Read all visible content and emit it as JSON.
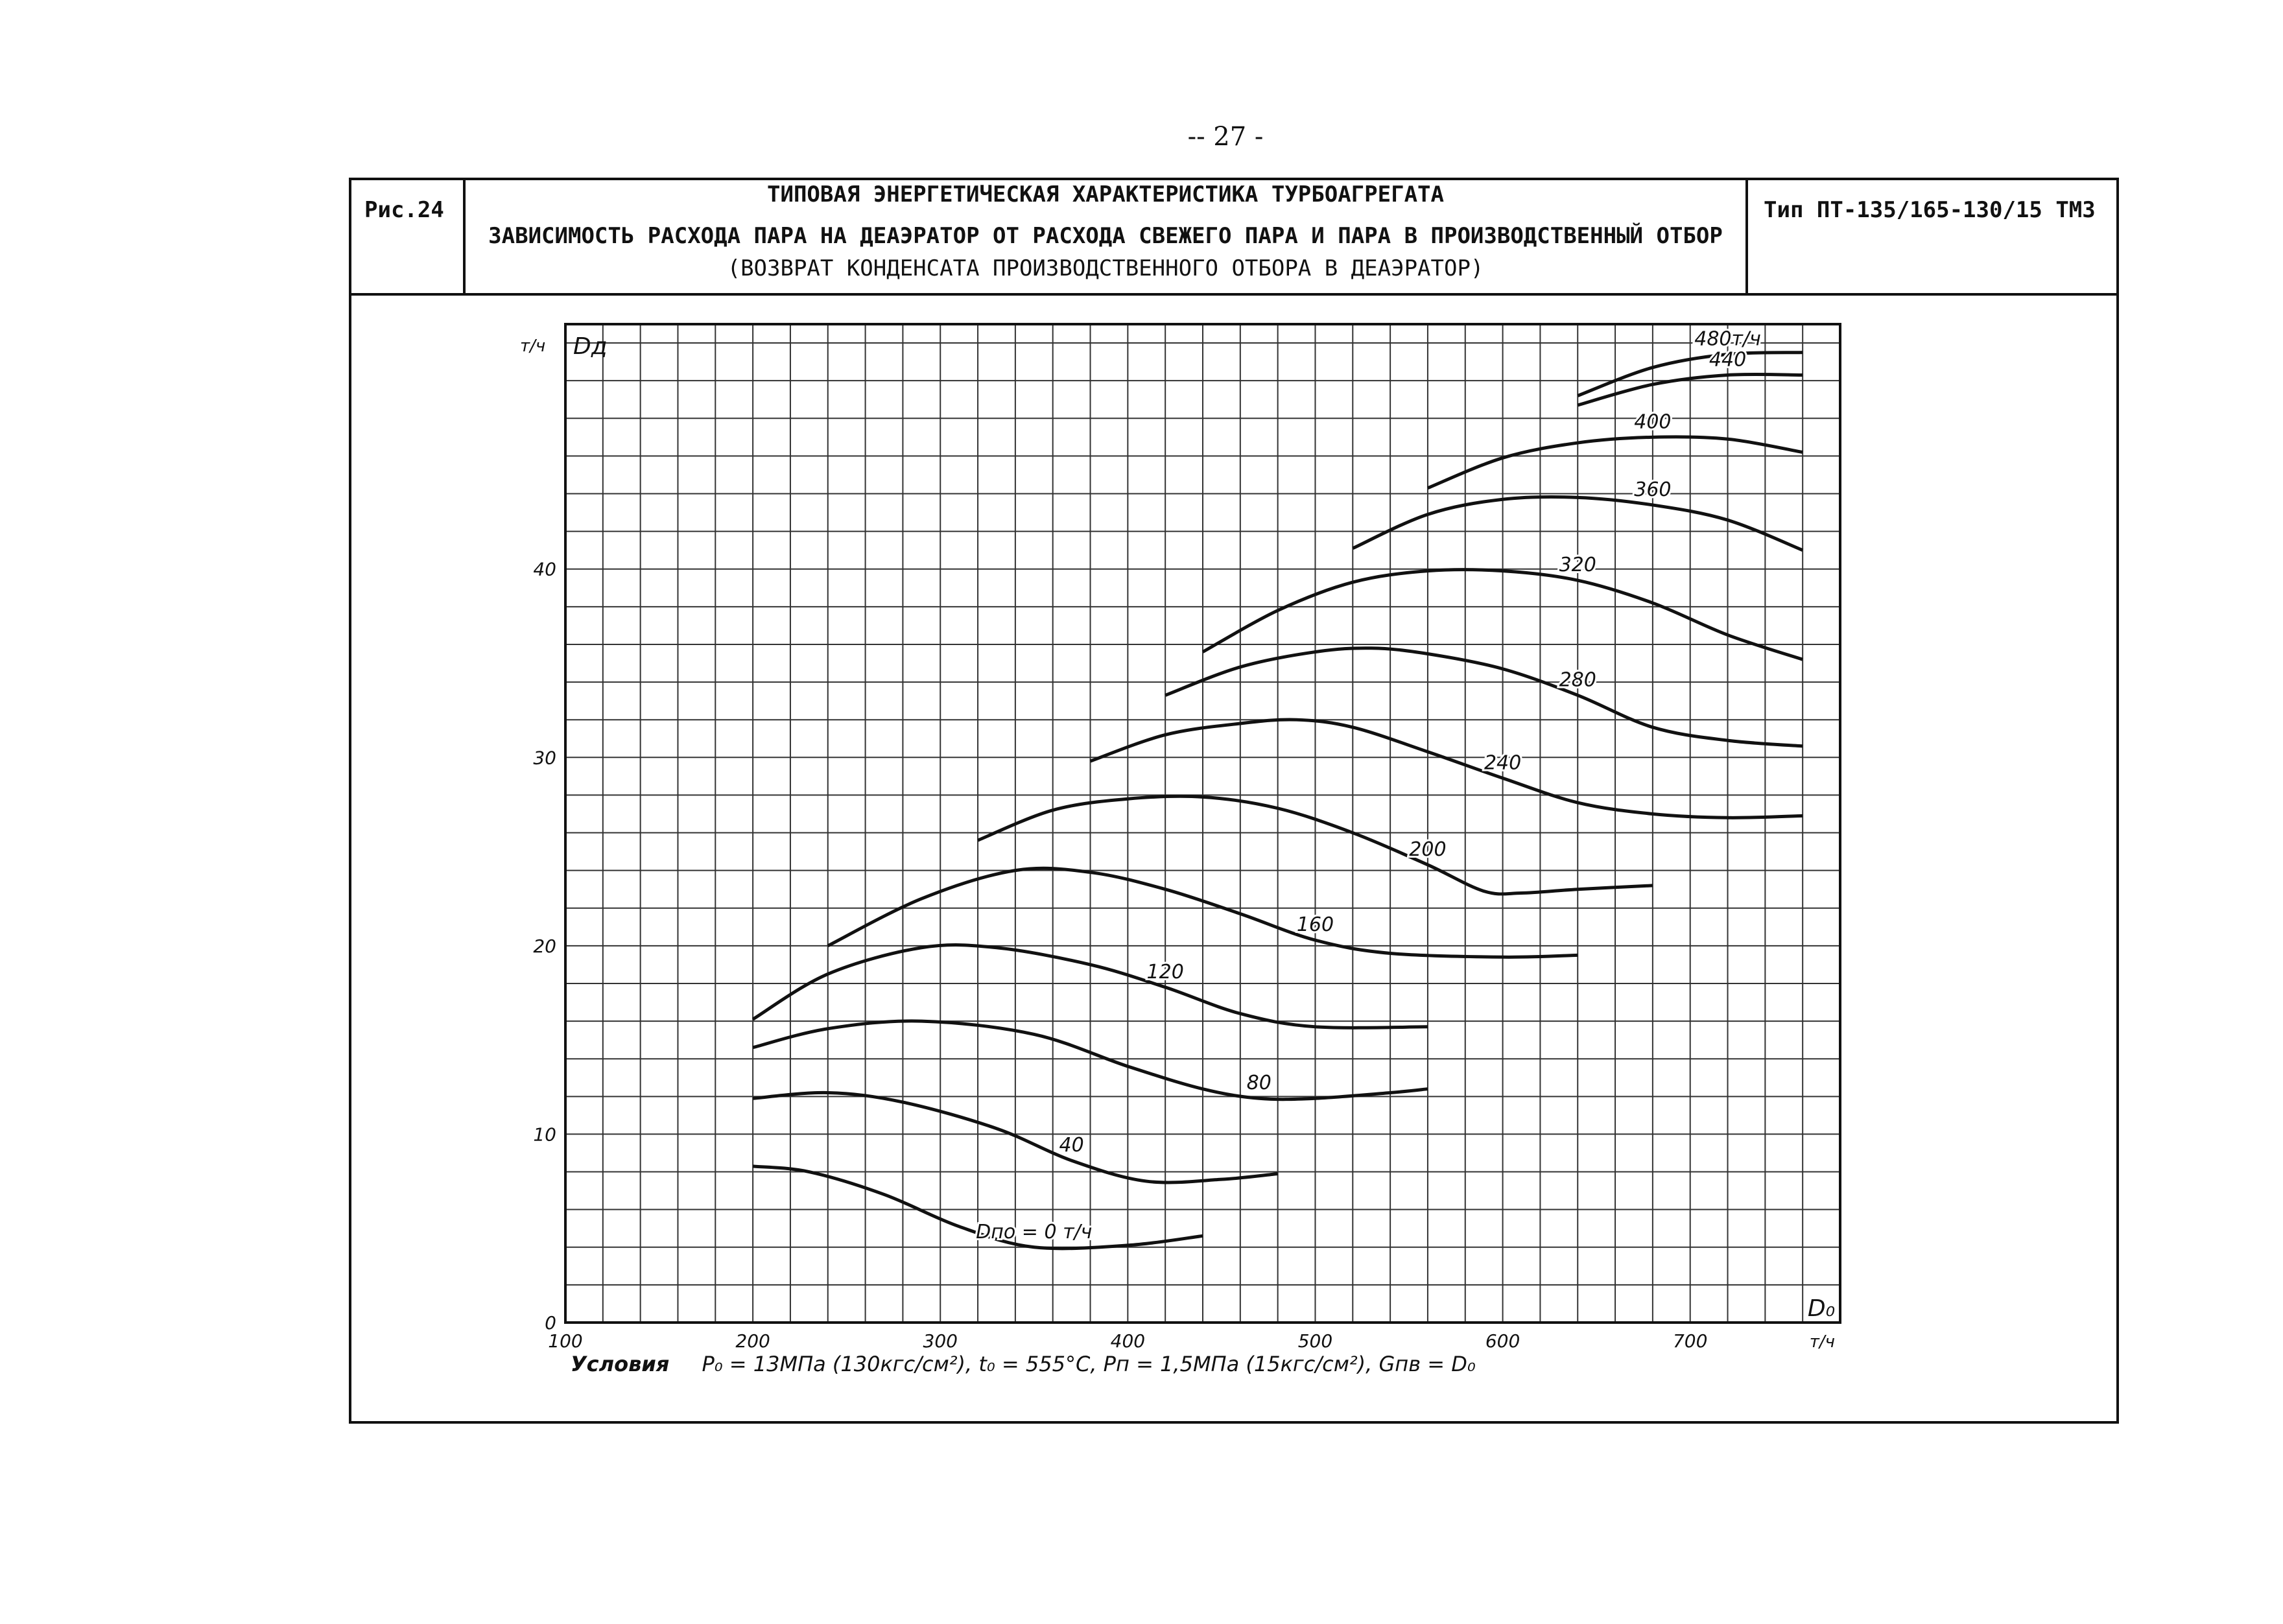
{
  "page_number": "-- 27 -",
  "header": {
    "figure_label": "Рис.24",
    "title_line1": "ТИПОВАЯ ЭНЕРГЕТИЧЕСКАЯ ХАРАКТЕРИСТИКА ТУРБОАГРЕГАТА",
    "title_line2": "ЗАВИСИМОСТЬ РАСХОДА ПАРА НА ДЕАЭРАТОР ОТ РАСХОДА СВЕЖЕГО ПАРА И ПАРА В ПРОИЗВОДСТВЕННЫЙ ОТБОР",
    "title_line3": "(ВОЗВРАТ КОНДЕНСАТА ПРОИЗВОДСТВЕННОГО ОТБОРА В ДЕАЭРАТОР)",
    "turbine_type": "Тип ПТ-135/165-130/15 ТМЗ"
  },
  "conditions": {
    "label": "Условия",
    "text": "P₀ = 13МПа (130кгс/см²), t₀ = 555°С, Pп = 1,5МПа (15кгс/см²), Gпв = D₀"
  },
  "chart_data": {
    "type": "line",
    "x_axis_symbol": "D₀",
    "x_unit": "т/ч",
    "y_axis_symbol": "Dд",
    "y_unit": "т/ч",
    "xlim": [
      100,
      780
    ],
    "ylim": [
      0,
      53
    ],
    "x_ticks": [
      100,
      200,
      300,
      400,
      500,
      600,
      700
    ],
    "y_ticks": [
      0,
      10,
      20,
      30,
      40
    ],
    "grid": true,
    "series": [
      {
        "name": "Dпо = 0 т/ч",
        "x": [
          200,
          230,
          270,
          310,
          350,
          400,
          440
        ],
        "y": [
          8.3,
          8.0,
          6.8,
          5.1,
          4.0,
          4.1,
          4.6
        ]
      },
      {
        "name": "40",
        "x": [
          200,
          240,
          280,
          330,
          370,
          410,
          450,
          480
        ],
        "y": [
          11.9,
          12.2,
          11.7,
          10.3,
          8.6,
          7.5,
          7.6,
          7.9
        ]
      },
      {
        "name": "80",
        "x": [
          200,
          240,
          290,
          350,
          400,
          440,
          470,
          500,
          540,
          560
        ],
        "y": [
          14.6,
          15.6,
          16.0,
          15.3,
          13.6,
          12.4,
          11.9,
          11.9,
          12.2,
          12.4
        ]
      },
      {
        "name": "120",
        "x": [
          200,
          240,
          290,
          330,
          380,
          420,
          460,
          500,
          560
        ],
        "y": [
          16.1,
          18.5,
          19.9,
          19.9,
          19.0,
          17.8,
          16.4,
          15.7,
          15.7
        ]
      },
      {
        "name": "160",
        "x": [
          240,
          290,
          340,
          380,
          420,
          460,
          500,
          540,
          600,
          640
        ],
        "y": [
          20.0,
          22.5,
          24.0,
          23.9,
          23.0,
          21.7,
          20.3,
          19.6,
          19.4,
          19.5
        ]
      },
      {
        "name": "200",
        "x": [
          320,
          360,
          400,
          440,
          480,
          520,
          560,
          590,
          610,
          640,
          680
        ],
        "y": [
          25.6,
          27.2,
          27.8,
          27.9,
          27.3,
          26.0,
          24.3,
          22.9,
          22.8,
          23.0,
          23.2
        ]
      },
      {
        "name": "240",
        "x": [
          380,
          420,
          460,
          490,
          520,
          560,
          600,
          640,
          680,
          720,
          760
        ],
        "y": [
          29.8,
          31.2,
          31.8,
          32.0,
          31.6,
          30.3,
          28.9,
          27.6,
          27.0,
          26.8,
          26.9
        ]
      },
      {
        "name": "280",
        "x": [
          420,
          460,
          500,
          530,
          560,
          600,
          640,
          680,
          720,
          760
        ],
        "y": [
          33.3,
          34.8,
          35.6,
          35.8,
          35.5,
          34.7,
          33.3,
          31.6,
          30.9,
          30.6
        ]
      },
      {
        "name": "320",
        "x": [
          440,
          480,
          520,
          560,
          600,
          640,
          680,
          720,
          760
        ],
        "y": [
          35.6,
          37.8,
          39.3,
          39.9,
          39.9,
          39.4,
          38.2,
          36.5,
          35.2
        ]
      },
      {
        "name": "360",
        "x": [
          520,
          560,
          600,
          640,
          680,
          720,
          760
        ],
        "y": [
          41.1,
          42.9,
          43.7,
          43.8,
          43.4,
          42.6,
          41.0
        ]
      },
      {
        "name": "400",
        "x": [
          560,
          600,
          640,
          680,
          720,
          760
        ],
        "y": [
          44.3,
          45.9,
          46.7,
          47.0,
          46.9,
          46.2
        ]
      },
      {
        "name": "440",
        "x": [
          640,
          680,
          720,
          760
        ],
        "y": [
          48.7,
          49.8,
          50.3,
          50.3
        ]
      },
      {
        "name": "480т/ч",
        "x": [
          640,
          680,
          720,
          760
        ],
        "y": [
          49.2,
          50.7,
          51.4,
          51.5
        ]
      }
    ]
  }
}
